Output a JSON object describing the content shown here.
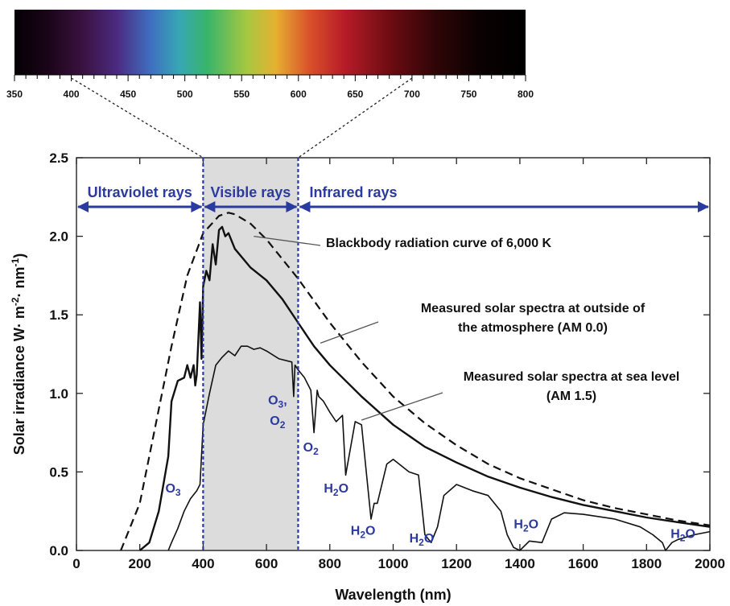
{
  "chart_data": {
    "type": "line",
    "xlabel": "Wavelength (nm)",
    "ylabel_parts": [
      "Solar irradiance W",
      "· m",
      "-2",
      "· nm",
      "-1",
      ")"
    ],
    "xlim": [
      0,
      2000
    ],
    "ylim": [
      0,
      2.5
    ],
    "x_ticks": [
      0,
      200,
      400,
      600,
      800,
      1000,
      1200,
      1400,
      1600,
      1800,
      2000
    ],
    "x_tick_labels": [
      "0",
      "200",
      "400",
      "600",
      "800",
      "1000",
      "1200",
      "1400",
      "1600",
      "1800",
      "2000"
    ],
    "y_ticks": [
      0,
      0.5,
      1.0,
      1.5,
      2.0,
      2.5
    ],
    "y_tick_labels": [
      "0.0",
      "0.5",
      "1.0",
      "1.5",
      "2.0",
      "2.5"
    ],
    "grid": false,
    "series": [
      {
        "name": "Blackbody radiation curve of 6,000 K",
        "style": "dashed",
        "x": [
          140,
          200,
          250,
          300,
          350,
          400,
          450,
          480,
          500,
          550,
          600,
          700,
          800,
          900,
          1000,
          1100,
          1200,
          1300,
          1400,
          1500,
          1600,
          1700,
          1800,
          1900,
          2000
        ],
        "y": [
          0.0,
          0.3,
          0.8,
          1.3,
          1.75,
          2.02,
          2.13,
          2.15,
          2.14,
          2.08,
          1.98,
          1.73,
          1.45,
          1.2,
          0.98,
          0.81,
          0.67,
          0.55,
          0.46,
          0.39,
          0.32,
          0.27,
          0.23,
          0.19,
          0.16
        ]
      },
      {
        "name": "Measured solar spectra at outside of the atmosphere (AM 0.0)",
        "style": "solid",
        "x": [
          200,
          230,
          260,
          290,
          300,
          320,
          340,
          350,
          360,
          370,
          375,
          380,
          390,
          395,
          400,
          410,
          420,
          430,
          440,
          450,
          460,
          470,
          480,
          500,
          550,
          600,
          650,
          700,
          750,
          800,
          900,
          1000,
          1100,
          1200,
          1300,
          1400,
          1500,
          1600,
          1700,
          1800,
          1900,
          2000
        ],
        "y": [
          0.0,
          0.05,
          0.25,
          0.6,
          0.95,
          1.08,
          1.1,
          1.18,
          1.1,
          1.18,
          1.05,
          1.12,
          1.58,
          1.22,
          1.68,
          1.78,
          1.72,
          1.95,
          1.82,
          2.04,
          2.06,
          2.0,
          2.02,
          1.92,
          1.8,
          1.72,
          1.6,
          1.45,
          1.3,
          1.18,
          0.98,
          0.8,
          0.66,
          0.56,
          0.47,
          0.4,
          0.34,
          0.29,
          0.25,
          0.21,
          0.18,
          0.15
        ]
      },
      {
        "name": "Measured solar spectra at sea level (AM 1.5)",
        "style": "solid",
        "x": [
          290,
          300,
          320,
          340,
          360,
          380,
          390,
          400,
          420,
          440,
          460,
          480,
          500,
          520,
          540,
          560,
          580,
          600,
          640,
          680,
          686,
          690,
          700,
          720,
          740,
          750,
          760,
          765,
          780,
          800,
          820,
          840,
          850,
          880,
          900,
          930,
          940,
          950,
          980,
          1000,
          1050,
          1080,
          1100,
          1120,
          1140,
          1160,
          1200,
          1250,
          1300,
          1340,
          1360,
          1380,
          1400,
          1430,
          1470,
          1500,
          1540,
          1600,
          1700,
          1780,
          1820,
          1850,
          1860,
          1880,
          1900,
          1950,
          2000
        ],
        "y": [
          0.0,
          0.05,
          0.14,
          0.25,
          0.33,
          0.38,
          0.42,
          0.8,
          1.0,
          1.18,
          1.23,
          1.27,
          1.24,
          1.3,
          1.3,
          1.28,
          1.29,
          1.27,
          1.22,
          1.2,
          0.98,
          1.18,
          1.15,
          1.1,
          1.02,
          0.75,
          1.02,
          0.98,
          0.95,
          0.88,
          0.82,
          0.86,
          0.48,
          0.82,
          0.8,
          0.2,
          0.3,
          0.3,
          0.55,
          0.58,
          0.5,
          0.48,
          0.1,
          0.05,
          0.15,
          0.35,
          0.42,
          0.38,
          0.35,
          0.25,
          0.1,
          0.02,
          0.0,
          0.06,
          0.05,
          0.2,
          0.24,
          0.23,
          0.2,
          0.15,
          0.1,
          0.05,
          0.0,
          0.05,
          0.07,
          0.1,
          0.12
        ]
      }
    ],
    "regions": [
      {
        "label": "Ultraviolet rays",
        "from": 0,
        "to": 400
      },
      {
        "label": "Visible rays",
        "from": 400,
        "to": 700
      },
      {
        "label": "Infrared rays",
        "from": 700,
        "to": 2000
      }
    ],
    "shaded_band": [
      400,
      700
    ],
    "annotations": [
      {
        "text": "Blackbody radiation curve of 6,000 K",
        "target_x": 560,
        "target_y": 2.0
      },
      {
        "text_lines": [
          "Measured solar spectra at outside of",
          "the atmosphere (AM 0.0)"
        ],
        "target_x": 770,
        "target_y": 1.32
      },
      {
        "text_lines": [
          "Measured solar spectra at sea level",
          "(AM 1.5)"
        ],
        "target_x": 900,
        "target_y": 0.83
      }
    ],
    "absorption_labels": [
      {
        "main": "O",
        "sub": "3",
        "x": 305,
        "y": 0.37
      },
      {
        "main": "O",
        "sub": "3",
        "tail": ",",
        "x": 635,
        "y": 0.93
      },
      {
        "main": "O",
        "sub": "2",
        "x": 635,
        "y": 0.8
      },
      {
        "main": "O",
        "sub": "2",
        "x": 740,
        "y": 0.63
      },
      {
        "main": "H",
        "sub": "2",
        "tail": "O",
        "x": 820,
        "y": 0.37
      },
      {
        "main": "H",
        "sub": "2",
        "tail": "O",
        "x": 905,
        "y": 0.1
      },
      {
        "main": "H",
        "sub": "2",
        "tail": "O",
        "x": 1090,
        "y": 0.05
      },
      {
        "main": "H",
        "sub": "2",
        "tail": "O",
        "x": 1420,
        "y": 0.14
      },
      {
        "main": "H",
        "sub": "2",
        "tail": "O",
        "x": 1915,
        "y": 0.08
      }
    ],
    "spectrum_bar": {
      "range": [
        350,
        800
      ],
      "tick_labels": [
        "350",
        "400",
        "450",
        "500",
        "550",
        "600",
        "650",
        "700",
        "750",
        "800"
      ],
      "tick_values": [
        350,
        400,
        450,
        500,
        550,
        600,
        650,
        700,
        750,
        800
      ],
      "gradient_colors": [
        {
          "nm": 350,
          "color": "#050005"
        },
        {
          "nm": 380,
          "color": "#1a0518"
        },
        {
          "nm": 410,
          "color": "#3a1240"
        },
        {
          "nm": 440,
          "color": "#4b2a80"
        },
        {
          "nm": 470,
          "color": "#3f6fc0"
        },
        {
          "nm": 495,
          "color": "#37a6b5"
        },
        {
          "nm": 520,
          "color": "#38b56a"
        },
        {
          "nm": 555,
          "color": "#a8c840"
        },
        {
          "nm": 580,
          "color": "#e6b031"
        },
        {
          "nm": 610,
          "color": "#d9502a"
        },
        {
          "nm": 640,
          "color": "#b81c28"
        },
        {
          "nm": 680,
          "color": "#6e0c12"
        },
        {
          "nm": 720,
          "color": "#300507"
        },
        {
          "nm": 760,
          "color": "#0a0102"
        },
        {
          "nm": 800,
          "color": "#000000"
        }
      ]
    },
    "colors": {
      "accent": "#2b3a9e",
      "band": "#dcdcdc",
      "curve": "#111111"
    }
  }
}
